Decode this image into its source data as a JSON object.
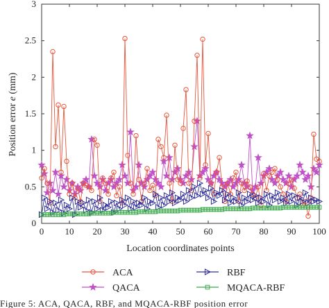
{
  "chart_data": {
    "type": "line",
    "xlabel": "Location coordinates points",
    "ylabel_text": "Position error ",
    "ylabel_symbol": "e",
    "ylabel_unit": " (mm)",
    "xlim": [
      0,
      100
    ],
    "ylim": [
      0,
      3
    ],
    "xticks": [
      "0",
      "10",
      "20",
      "30",
      "40",
      "50",
      "60",
      "70",
      "80",
      "90",
      "100"
    ],
    "yticks": [
      "0",
      "0.5",
      "1",
      "1.5",
      "2",
      "2.5",
      "3"
    ],
    "grid": false,
    "legend_position": "bottom",
    "series": [
      {
        "name": "ACA",
        "color": "#e8543a",
        "marker": "circle",
        "values": [
          0.62,
          0.75,
          0.55,
          0.28,
          2.35,
          1.05,
          1.62,
          0.7,
          1.6,
          0.85,
          0.4,
          0.55,
          0.35,
          0.48,
          0.3,
          0.55,
          0.52,
          0.5,
          0.45,
          1.15,
          1.07,
          0.3,
          0.62,
          0.55,
          0.4,
          0.62,
          0.7,
          0.38,
          0.5,
          0.28,
          2.53,
          0.93,
          0.55,
          0.4,
          1.2,
          0.6,
          0.3,
          0.55,
          0.75,
          0.45,
          0.52,
          0.38,
          1.15,
          1.05,
          0.9,
          1.48,
          0.55,
          0.3,
          1.07,
          0.6,
          0.55,
          1.3,
          1.83,
          0.55,
          0.45,
          1.4,
          2.3,
          0.62,
          2.52,
          0.8,
          1.23,
          0.55,
          0.4,
          0.7,
          0.9,
          0.5,
          0.3,
          0.55,
          0.4,
          0.62,
          0.7,
          0.3,
          0.55,
          0.45,
          0.58,
          0.5,
          0.4,
          0.35,
          0.5,
          0.25,
          0.68,
          0.45,
          0.65,
          0.7,
          0.75,
          0.6,
          0.5,
          0.4,
          0.3,
          0.55,
          0.6,
          0.48,
          0.35,
          0.4,
          0.25,
          0.3,
          0.1,
          0.35,
          1.22,
          0.88,
          0.85
        ]
      },
      {
        "name": "QACA",
        "color": "#c050c8",
        "marker": "star",
        "values": [
          0.8,
          0.68,
          0.42,
          0.55,
          0.45,
          0.7,
          0.4,
          0.65,
          0.5,
          0.6,
          0.45,
          0.55,
          0.4,
          0.5,
          0.45,
          0.55,
          0.6,
          0.5,
          1.15,
          0.65,
          0.55,
          0.5,
          0.6,
          0.45,
          0.55,
          0.6,
          0.5,
          0.55,
          0.6,
          0.8,
          0.65,
          0.55,
          1.25,
          0.45,
          0.5,
          0.8,
          0.55,
          0.5,
          0.6,
          0.65,
          0.7,
          0.6,
          0.55,
          0.5,
          0.85,
          0.65,
          0.9,
          0.6,
          0.7,
          0.75,
          0.6,
          0.55,
          0.65,
          0.7,
          0.6,
          1.05,
          1.4,
          0.65,
          0.7,
          0.75,
          0.6,
          0.55,
          0.65,
          0.7,
          0.6,
          0.55,
          0.5,
          0.55,
          0.6,
          0.5,
          0.55,
          0.6,
          0.8,
          0.55,
          0.5,
          1.2,
          0.45,
          0.5,
          0.9,
          0.55,
          0.65,
          0.7,
          0.75,
          0.6,
          0.55,
          0.65,
          0.7,
          0.6,
          0.55,
          0.65,
          0.5,
          0.6,
          0.65,
          0.8,
          0.7,
          0.6,
          0.65,
          0.5,
          0.75,
          0.7,
          0.8
        ]
      },
      {
        "name": "RBF",
        "color": "#2c2c9a",
        "marker": "triangle-right",
        "values": [
          0.12,
          0.35,
          0.2,
          0.3,
          0.15,
          0.28,
          0.18,
          0.32,
          0.14,
          0.25,
          0.2,
          0.35,
          0.12,
          0.3,
          0.22,
          0.28,
          0.18,
          0.32,
          0.15,
          0.3,
          0.2,
          0.35,
          0.18,
          0.25,
          0.22,
          0.3,
          0.15,
          0.28,
          0.2,
          0.32,
          0.25,
          0.35,
          0.2,
          0.3,
          0.22,
          0.28,
          0.25,
          0.35,
          0.2,
          0.3,
          0.28,
          0.4,
          0.22,
          0.35,
          0.25,
          0.38,
          0.3,
          0.42,
          0.28,
          0.35,
          0.32,
          0.4,
          0.3,
          0.45,
          0.35,
          0.5,
          0.38,
          0.55,
          0.4,
          0.45,
          0.35,
          0.48,
          0.3,
          0.42,
          0.38,
          0.45,
          0.32,
          0.4,
          0.28,
          0.35,
          0.3,
          0.42,
          0.25,
          0.35,
          0.3,
          0.4,
          0.32,
          0.38,
          0.28,
          0.35,
          0.3,
          0.4,
          0.25,
          0.38,
          0.32,
          0.42,
          0.3,
          0.35,
          0.28,
          0.4,
          0.3,
          0.38,
          0.25,
          0.35,
          0.3,
          0.42,
          0.28,
          0.35,
          0.3,
          0.32,
          0.3
        ]
      },
      {
        "name": "MQACA-RBF",
        "color": "#3aa84a",
        "marker": "square",
        "values": [
          0.12,
          0.12,
          0.12,
          0.12,
          0.12,
          0.12,
          0.12,
          0.12,
          0.12,
          0.13,
          0.13,
          0.13,
          0.13,
          0.13,
          0.13,
          0.13,
          0.13,
          0.13,
          0.14,
          0.14,
          0.14,
          0.14,
          0.14,
          0.14,
          0.14,
          0.14,
          0.15,
          0.15,
          0.15,
          0.15,
          0.15,
          0.15,
          0.15,
          0.15,
          0.15,
          0.16,
          0.16,
          0.16,
          0.16,
          0.16,
          0.16,
          0.16,
          0.17,
          0.17,
          0.17,
          0.17,
          0.17,
          0.17,
          0.17,
          0.17,
          0.18,
          0.18,
          0.18,
          0.18,
          0.18,
          0.18,
          0.18,
          0.18,
          0.19,
          0.19,
          0.19,
          0.19,
          0.19,
          0.19,
          0.19,
          0.19,
          0.2,
          0.2,
          0.2,
          0.2,
          0.2,
          0.2,
          0.2,
          0.2,
          0.2,
          0.2,
          0.21,
          0.21,
          0.21,
          0.21,
          0.21,
          0.21,
          0.21,
          0.21,
          0.21,
          0.21,
          0.21,
          0.22,
          0.22,
          0.22,
          0.22,
          0.22,
          0.22,
          0.22,
          0.22,
          0.22,
          0.22,
          0.22,
          0.22,
          0.22,
          0.22
        ]
      }
    ]
  },
  "caption": "Figure 5: ACA, QACA, RBF, and MQACA-RBF position error"
}
